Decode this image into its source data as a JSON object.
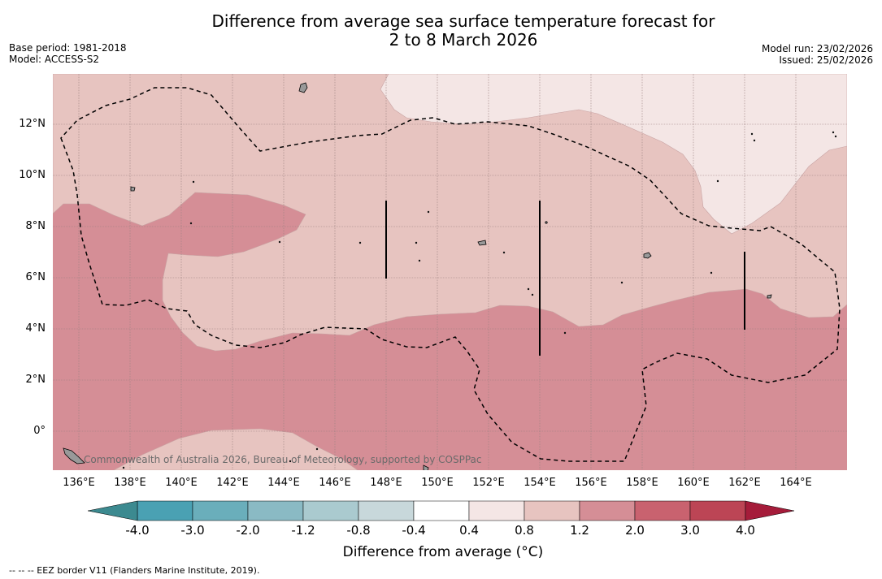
{
  "title": {
    "line1": "Difference from average sea surface temperature forecast for",
    "line2": "2 to 8 March 2026"
  },
  "meta_left": {
    "base_period": "Base period: 1981-2018",
    "model": "Model: ACCESS-S2"
  },
  "meta_right": {
    "model_run": "Model run: 23/02/2026",
    "issued": "Issued: 25/02/2026"
  },
  "map": {
    "lat_labels": [
      "12°N",
      "10°N",
      "8°N",
      "6°N",
      "4°N",
      "2°N",
      "0°"
    ],
    "lon_labels": [
      "136°E",
      "138°E",
      "140°E",
      "142°E",
      "144°E",
      "146°E",
      "148°E",
      "150°E",
      "152°E",
      "154°E",
      "156°E",
      "158°E",
      "160°E",
      "162°E",
      "164°E"
    ],
    "credit": "Commonwealth of Australia 2026, Bureau of Meteorology, supported by COSPPac"
  },
  "colorbar": {
    "labels": [
      "-4.0",
      "-3.0",
      "-2.0",
      "-1.2",
      "-0.8",
      "-0.4",
      "0.4",
      "0.8",
      "1.2",
      "2.0",
      "3.0",
      "4.0"
    ],
    "colors": [
      "#4aa1b3",
      "#6aaebb",
      "#8abac4",
      "#aacacf",
      "#c8d8db",
      "#ffffff",
      "#f4e6e5",
      "#e7c4c0",
      "#d58e96",
      "#c9626f",
      "#bc4555"
    ],
    "low_extend_color": "#3c8a90",
    "high_extend_color": "#a51c3a",
    "title": "Difference from average (°C)"
  },
  "palette": {
    "light_pink": "#f4e6e5",
    "pink": "#e7c4c0",
    "rose": "#d58e96"
  },
  "legend_note": "--  --  -- EEZ border V11 (Flanders Marine Institute, 2019)."
}
